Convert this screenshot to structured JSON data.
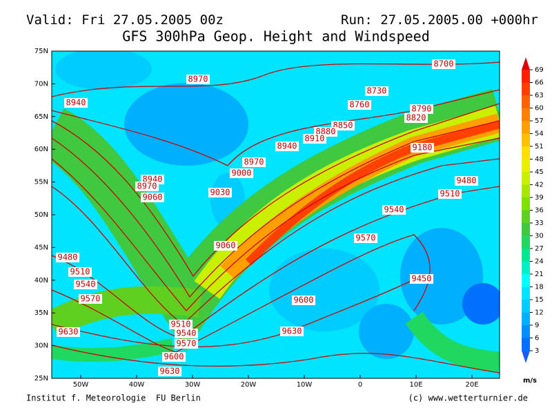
{
  "header": {
    "valid": "Valid: Fri 27.05.2005 00z",
    "run": "Run: 27.05.2005.00 +000hr",
    "title": "GFS 300hPa Geop. Height and Windspeed"
  },
  "map": {
    "lat_labels": [
      "75N",
      "70N",
      "65N",
      "60N",
      "55N",
      "50N",
      "45N",
      "40N",
      "35N",
      "30N",
      "25N"
    ],
    "lon_labels": [
      "50W",
      "40W",
      "30W",
      "20W",
      "10W",
      "0",
      "10E",
      "20E"
    ],
    "contour_labels": [
      "8970",
      "8940",
      "8700",
      "8730",
      "8760",
      "8790",
      "8820",
      "8850",
      "8880",
      "8910",
      "8940",
      "9180",
      "8970",
      "9000",
      "8940",
      "8970",
      "9060",
      "9030",
      "9480",
      "9510",
      "9540",
      "9570",
      "9060",
      "9480",
      "9510",
      "9540",
      "9570",
      "9450",
      "9600",
      "9630",
      "9630",
      "9510",
      "9540",
      "9570",
      "9600",
      "9630"
    ]
  },
  "colorbar": {
    "ticks": [
      3,
      6,
      9,
      12,
      15,
      18,
      21,
      24,
      27,
      30,
      33,
      36,
      39,
      42,
      45,
      48,
      51,
      54,
      57,
      60,
      63,
      66,
      69
    ],
    "unit": "m/s",
    "colors": [
      "#1a5cff",
      "#0070ff",
      "#0090ff",
      "#00b0ff",
      "#00ccff",
      "#00e4ff",
      "#00ffff",
      "#00f0c8",
      "#00e890",
      "#20d860",
      "#40c840",
      "#60d020",
      "#80e000",
      "#a8e800",
      "#c8f000",
      "#e8f000",
      "#ffe000",
      "#ffc000",
      "#ffa000",
      "#ff8000",
      "#ff6000",
      "#ff4000",
      "#ff2000",
      "#e00000"
    ]
  },
  "footer": {
    "left": "Institut f. Meteorologie  FU Berlin",
    "right": "(c) www.wetterturnier.de"
  }
}
